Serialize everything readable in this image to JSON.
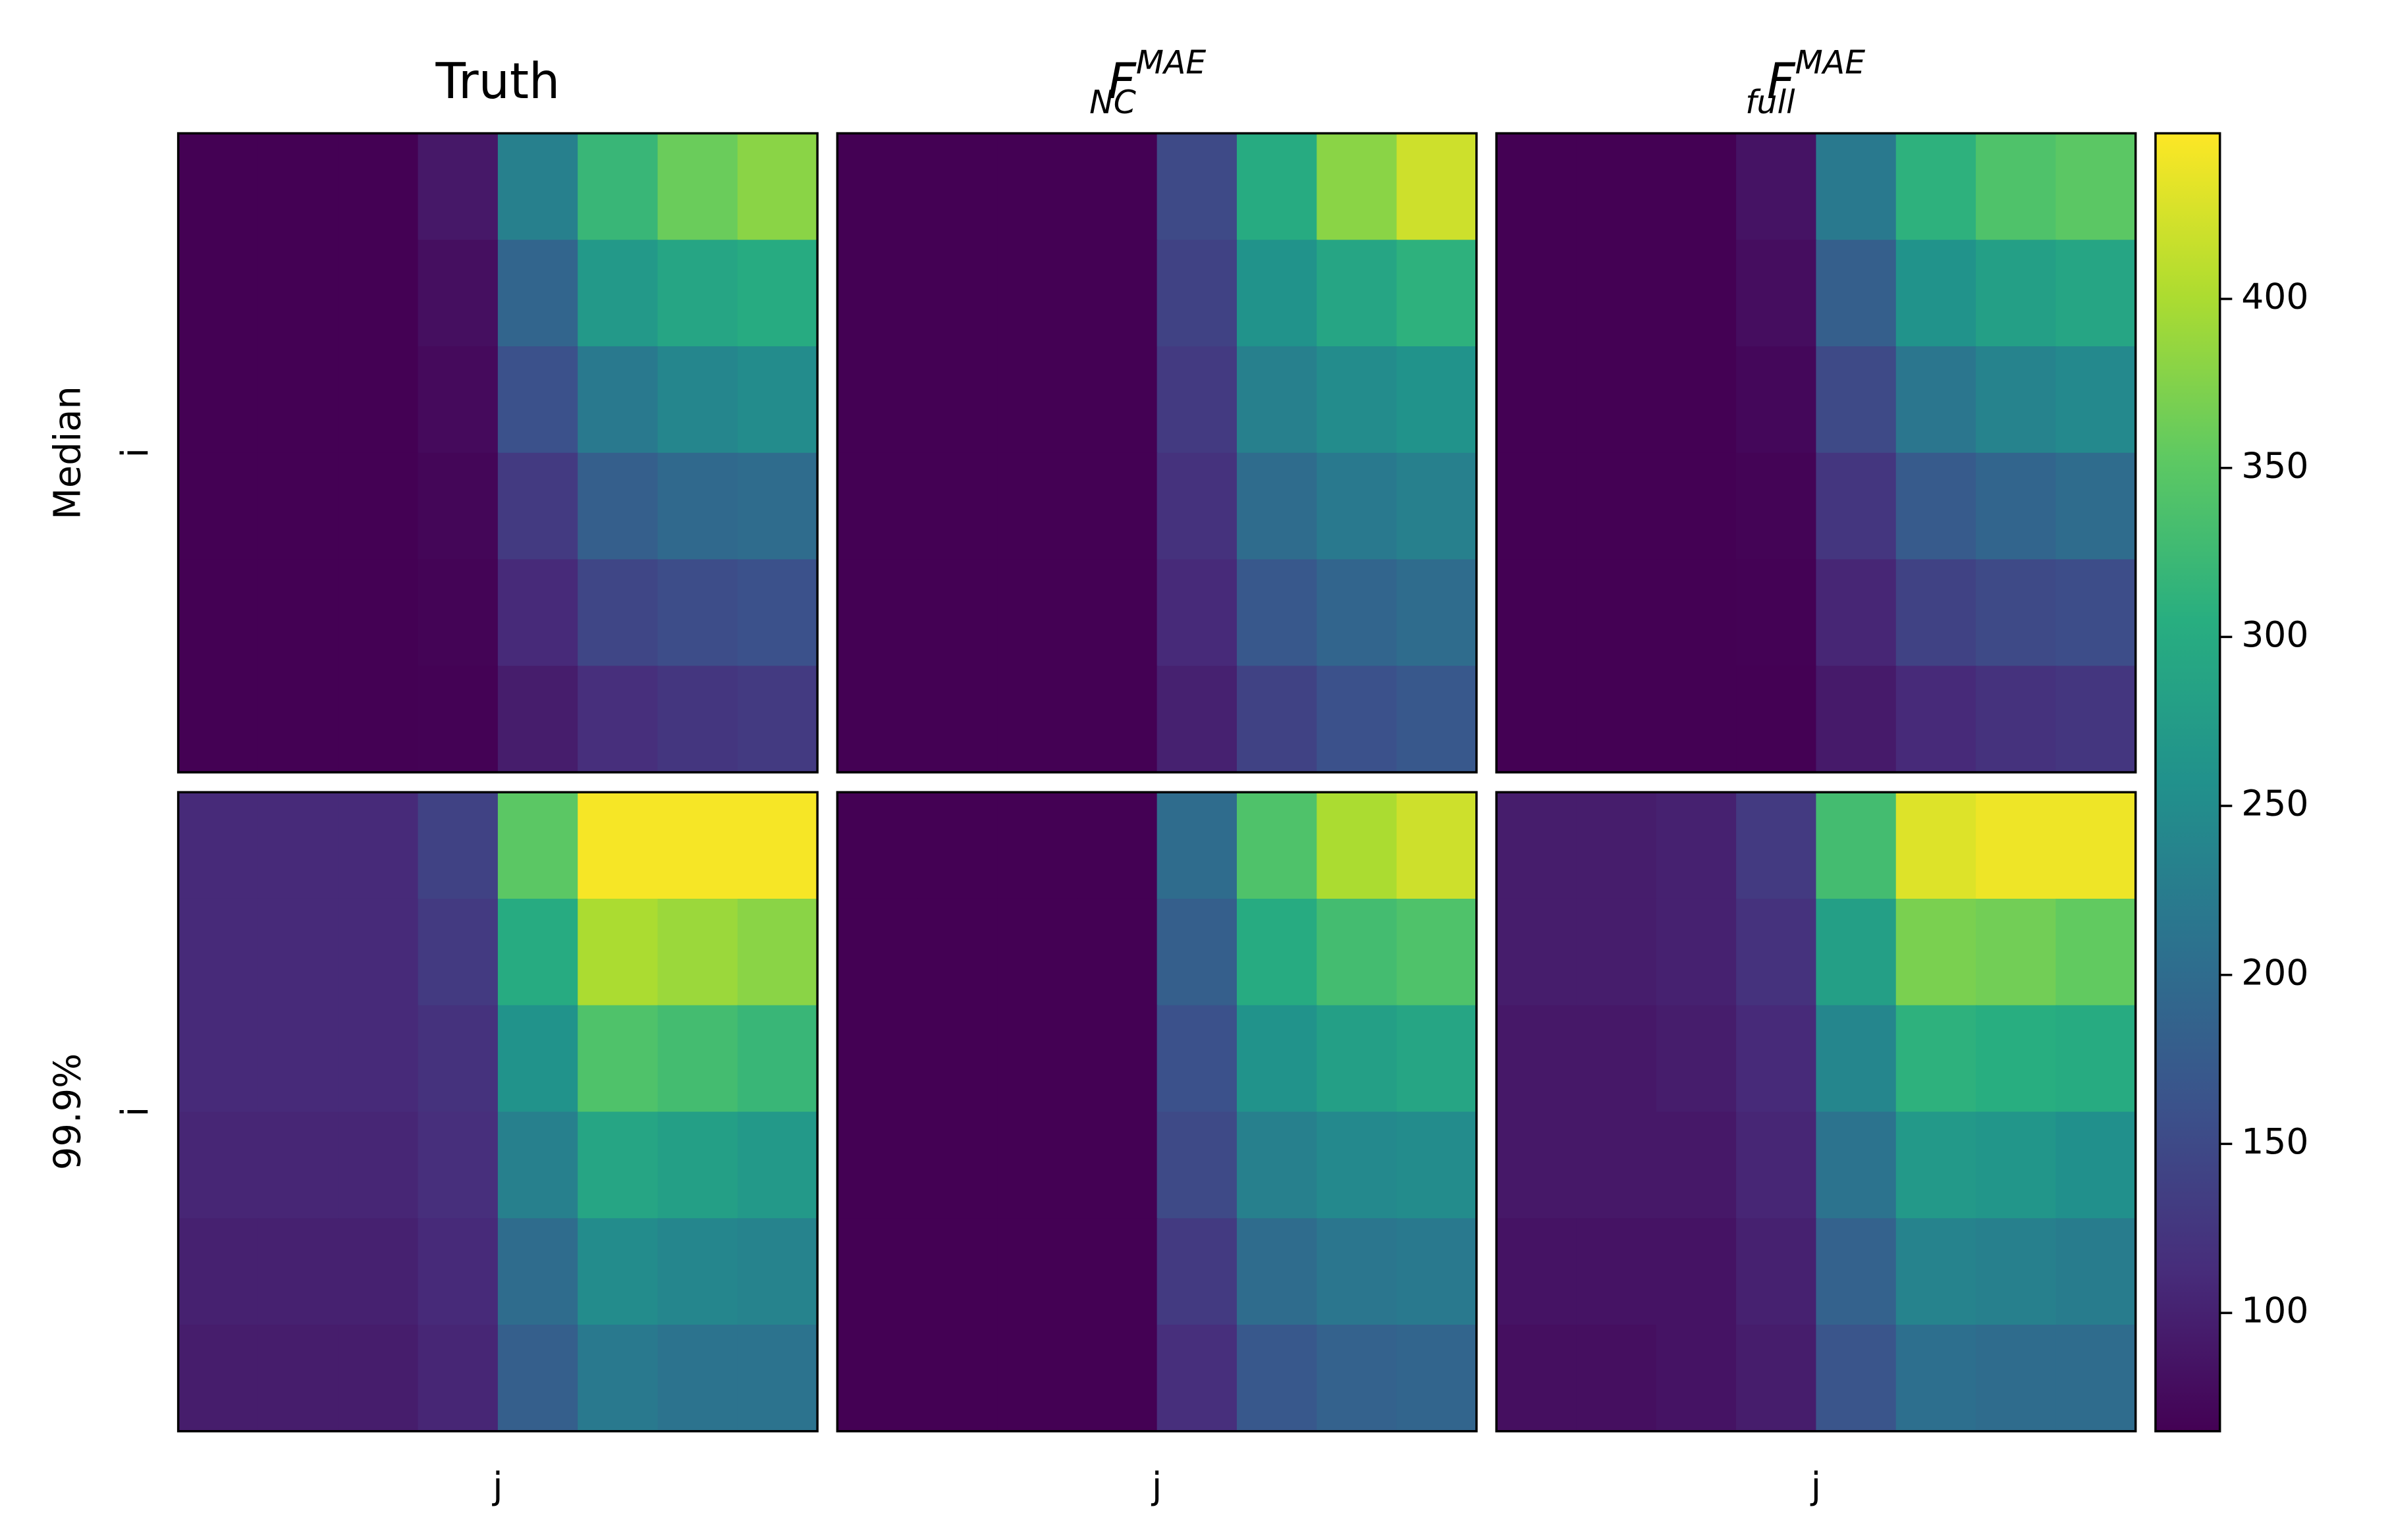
{
  "chart_data": {
    "type": "heatmap",
    "colormap": "viridis",
    "columns": [
      {
        "base": "Truth"
      },
      {
        "base": "F",
        "sub": "NC",
        "sup": "MAE"
      },
      {
        "base": "F",
        "sub": "full",
        "sup": "MAE"
      }
    ],
    "rows": [
      "Median",
      "99.9%"
    ],
    "xlabel": "j",
    "ylabel": "i",
    "colorbar": {
      "lim": [
        65,
        449
      ],
      "ticks": [
        100,
        150,
        200,
        250,
        300,
        350,
        400
      ]
    },
    "panels": [
      [
        [
          [
            65,
            65,
            65,
            90,
            230,
            320,
            360,
            380
          ],
          [
            65,
            65,
            65,
            80,
            190,
            270,
            290,
            300
          ],
          [
            65,
            65,
            65,
            75,
            160,
            220,
            240,
            250
          ],
          [
            65,
            65,
            65,
            70,
            130,
            180,
            195,
            200
          ],
          [
            65,
            65,
            65,
            68,
            110,
            145,
            155,
            160
          ],
          [
            65,
            65,
            65,
            66,
            95,
            115,
            125,
            130
          ]
        ],
        [
          [
            65,
            65,
            65,
            65,
            150,
            300,
            380,
            420
          ],
          [
            65,
            65,
            65,
            65,
            140,
            260,
            290,
            310
          ],
          [
            65,
            65,
            65,
            65,
            130,
            230,
            250,
            260
          ],
          [
            65,
            65,
            65,
            65,
            120,
            200,
            220,
            230
          ],
          [
            65,
            65,
            65,
            65,
            110,
            170,
            190,
            200
          ],
          [
            65,
            65,
            65,
            65,
            100,
            140,
            160,
            170
          ]
        ],
        [
          [
            65,
            65,
            65,
            85,
            220,
            310,
            340,
            350
          ],
          [
            65,
            65,
            65,
            78,
            180,
            260,
            280,
            290
          ],
          [
            65,
            65,
            65,
            72,
            150,
            215,
            235,
            245
          ],
          [
            65,
            65,
            65,
            68,
            125,
            175,
            190,
            200
          ],
          [
            65,
            65,
            65,
            66,
            105,
            140,
            150,
            155
          ],
          [
            65,
            65,
            65,
            65,
            92,
            110,
            120,
            125
          ]
        ]
      ],
      [
        [
          [
            110,
            110,
            110,
            140,
            350,
            445,
            445,
            445
          ],
          [
            110,
            110,
            110,
            130,
            300,
            400,
            390,
            380
          ],
          [
            110,
            110,
            110,
            120,
            260,
            340,
            330,
            320
          ],
          [
            105,
            105,
            105,
            115,
            230,
            290,
            280,
            270
          ],
          [
            100,
            100,
            100,
            110,
            200,
            250,
            240,
            235
          ],
          [
            95,
            95,
            95,
            105,
            180,
            220,
            210,
            210
          ]
        ],
        [
          [
            65,
            65,
            65,
            65,
            200,
            340,
            400,
            420
          ],
          [
            65,
            65,
            65,
            65,
            180,
            300,
            330,
            340
          ],
          [
            65,
            65,
            65,
            65,
            160,
            260,
            280,
            290
          ],
          [
            65,
            65,
            65,
            65,
            150,
            230,
            245,
            250
          ],
          [
            65,
            65,
            65,
            65,
            130,
            200,
            215,
            220
          ],
          [
            65,
            65,
            65,
            65,
            115,
            170,
            185,
            190
          ]
        ],
        [
          [
            95,
            95,
            100,
            130,
            330,
            430,
            440,
            440
          ],
          [
            95,
            95,
            100,
            120,
            280,
            370,
            365,
            355
          ],
          [
            90,
            90,
            95,
            110,
            240,
            310,
            305,
            300
          ],
          [
            90,
            90,
            90,
            105,
            210,
            270,
            265,
            255
          ],
          [
            85,
            85,
            85,
            100,
            185,
            235,
            230,
            225
          ],
          [
            80,
            80,
            85,
            95,
            165,
            205,
            200,
            200
          ]
        ]
      ]
    ]
  }
}
